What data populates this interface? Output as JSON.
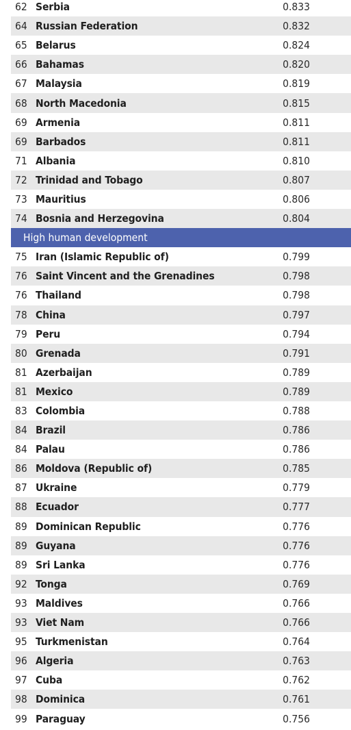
{
  "groups": {
    "very_high_tail": [
      {
        "rank": "62",
        "country": "Serbia",
        "hdi": "0.833"
      },
      {
        "rank": "64",
        "country": "Russian Federation",
        "hdi": "0.832"
      },
      {
        "rank": "65",
        "country": "Belarus",
        "hdi": "0.824"
      },
      {
        "rank": "66",
        "country": "Bahamas",
        "hdi": "0.820"
      },
      {
        "rank": "67",
        "country": "Malaysia",
        "hdi": "0.819"
      },
      {
        "rank": "68",
        "country": "North Macedonia",
        "hdi": "0.815"
      },
      {
        "rank": "69",
        "country": "Armenia",
        "hdi": "0.811"
      },
      {
        "rank": "69",
        "country": "Barbados",
        "hdi": "0.811"
      },
      {
        "rank": "71",
        "country": "Albania",
        "hdi": "0.810"
      },
      {
        "rank": "72",
        "country": "Trinidad and Tobago",
        "hdi": "0.807"
      },
      {
        "rank": "73",
        "country": "Mauritius",
        "hdi": "0.806"
      },
      {
        "rank": "74",
        "country": "Bosnia and Herzegovina",
        "hdi": "0.804"
      }
    ],
    "high_heading": "High human development",
    "high": [
      {
        "rank": "75",
        "country": "Iran (Islamic Republic of)",
        "hdi": "0.799"
      },
      {
        "rank": "76",
        "country": "Saint Vincent and the Grenadines",
        "hdi": "0.798"
      },
      {
        "rank": "76",
        "country": "Thailand",
        "hdi": "0.798"
      },
      {
        "rank": "78",
        "country": "China",
        "hdi": "0.797"
      },
      {
        "rank": "79",
        "country": "Peru",
        "hdi": "0.794"
      },
      {
        "rank": "80",
        "country": "Grenada",
        "hdi": "0.791"
      },
      {
        "rank": "81",
        "country": "Azerbaijan",
        "hdi": "0.789"
      },
      {
        "rank": "81",
        "country": "Mexico",
        "hdi": "0.789"
      },
      {
        "rank": "83",
        "country": "Colombia",
        "hdi": "0.788"
      },
      {
        "rank": "84",
        "country": "Brazil",
        "hdi": "0.786"
      },
      {
        "rank": "84",
        "country": "Palau",
        "hdi": "0.786"
      },
      {
        "rank": "86",
        "country": "Moldova (Republic of)",
        "hdi": "0.785"
      },
      {
        "rank": "87",
        "country": "Ukraine",
        "hdi": "0.779"
      },
      {
        "rank": "88",
        "country": "Ecuador",
        "hdi": "0.777"
      },
      {
        "rank": "89",
        "country": "Dominican Republic",
        "hdi": "0.776"
      },
      {
        "rank": "89",
        "country": "Guyana",
        "hdi": "0.776"
      },
      {
        "rank": "89",
        "country": "Sri Lanka",
        "hdi": "0.776"
      },
      {
        "rank": "92",
        "country": "Tonga",
        "hdi": "0.769"
      },
      {
        "rank": "93",
        "country": "Maldives",
        "hdi": "0.766"
      },
      {
        "rank": "93",
        "country": "Viet Nam",
        "hdi": "0.766"
      },
      {
        "rank": "95",
        "country": "Turkmenistan",
        "hdi": "0.764"
      },
      {
        "rank": "96",
        "country": "Algeria",
        "hdi": "0.763"
      },
      {
        "rank": "97",
        "country": "Cuba",
        "hdi": "0.762"
      },
      {
        "rank": "98",
        "country": "Dominica",
        "hdi": "0.761"
      },
      {
        "rank": "99",
        "country": "Paraguay",
        "hdi": "0.756"
      }
    ]
  },
  "colors": {
    "section_band": "#4d62ad",
    "zebra_stripe": "#e8e8e8"
  }
}
